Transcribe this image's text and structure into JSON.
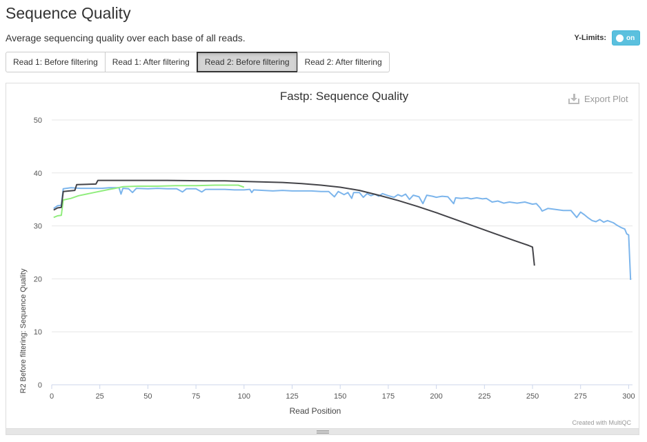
{
  "page": {
    "title": "Sequence Quality",
    "subtitle": "Average sequencing quality over each base of all reads."
  },
  "ylimits": {
    "label": "Y-Limits:",
    "toggle_text": "on"
  },
  "tabs": [
    {
      "label": "Read 1: Before filtering",
      "active": false
    },
    {
      "label": "Read 1: After filtering",
      "active": false
    },
    {
      "label": "Read 2: Before filtering",
      "active": true
    },
    {
      "label": "Read 2: After filtering",
      "active": false
    }
  ],
  "export_label": "Export Plot",
  "credit": "Created with MultiQC",
  "chart_data": {
    "type": "line",
    "title": "Fastp: Sequence Quality",
    "xlabel": "Read Position",
    "ylabel": "R2 Before filtering: Sequence Quality",
    "xlim": [
      0,
      302
    ],
    "ylim": [
      0,
      50
    ],
    "xticks": [
      0,
      25,
      50,
      75,
      100,
      125,
      150,
      175,
      200,
      225,
      250,
      275,
      300
    ],
    "yticks": [
      0,
      10,
      20,
      30,
      40,
      50
    ],
    "grid": true,
    "series": [
      {
        "color": "#7cb5ec",
        "points": [
          [
            1,
            33.3
          ],
          [
            3,
            33.8
          ],
          [
            5,
            33.9
          ],
          [
            6,
            37.0
          ],
          [
            10,
            37.2
          ],
          [
            15,
            37.1
          ],
          [
            20,
            37.1
          ],
          [
            26,
            37.1
          ],
          [
            30,
            37.2
          ],
          [
            35,
            37.2
          ],
          [
            36,
            36.0
          ],
          [
            37,
            37.1
          ],
          [
            40,
            37.0
          ],
          [
            42,
            36.3
          ],
          [
            44,
            37.1
          ],
          [
            50,
            37.0
          ],
          [
            55,
            37.1
          ],
          [
            60,
            37.0
          ],
          [
            65,
            37.0
          ],
          [
            68,
            36.4
          ],
          [
            70,
            37.0
          ],
          [
            75,
            37.0
          ],
          [
            78,
            36.4
          ],
          [
            80,
            36.9
          ],
          [
            85,
            36.9
          ],
          [
            90,
            36.9
          ],
          [
            95,
            36.8
          ],
          [
            100,
            36.8
          ],
          [
            103,
            36.9
          ],
          [
            104,
            36.3
          ],
          [
            105,
            36.8
          ],
          [
            110,
            36.7
          ],
          [
            115,
            36.6
          ],
          [
            120,
            36.7
          ],
          [
            125,
            36.6
          ],
          [
            130,
            36.6
          ],
          [
            135,
            36.6
          ],
          [
            140,
            36.5
          ],
          [
            144,
            36.5
          ],
          [
            147,
            35.5
          ],
          [
            149,
            36.5
          ],
          [
            152,
            35.9
          ],
          [
            154,
            36.3
          ],
          [
            156,
            35.2
          ],
          [
            157,
            36.3
          ],
          [
            160,
            36.3
          ],
          [
            162,
            35.4
          ],
          [
            164,
            36.1
          ],
          [
            166,
            35.7
          ],
          [
            168,
            36.0
          ],
          [
            170,
            35.6
          ],
          [
            172,
            36.1
          ],
          [
            175,
            35.7
          ],
          [
            178,
            35.4
          ],
          [
            180,
            35.9
          ],
          [
            182,
            35.6
          ],
          [
            184,
            36.0
          ],
          [
            186,
            35.0
          ],
          [
            188,
            35.8
          ],
          [
            191,
            35.5
          ],
          [
            193,
            34.2
          ],
          [
            195,
            35.8
          ],
          [
            198,
            35.6
          ],
          [
            200,
            35.4
          ],
          [
            203,
            35.6
          ],
          [
            206,
            35.5
          ],
          [
            209,
            34.2
          ],
          [
            210,
            35.3
          ],
          [
            213,
            35.2
          ],
          [
            216,
            35.3
          ],
          [
            218,
            35.1
          ],
          [
            221,
            35.3
          ],
          [
            224,
            35.1
          ],
          [
            226,
            35.2
          ],
          [
            229,
            34.5
          ],
          [
            232,
            34.7
          ],
          [
            235,
            34.3
          ],
          [
            238,
            34.5
          ],
          [
            242,
            34.3
          ],
          [
            246,
            34.5
          ],
          [
            250,
            34.1
          ],
          [
            252,
            34.2
          ],
          [
            254,
            33.4
          ],
          [
            255,
            32.8
          ],
          [
            258,
            33.3
          ],
          [
            262,
            33.1
          ],
          [
            266,
            32.9
          ],
          [
            270,
            32.9
          ],
          [
            273,
            31.6
          ],
          [
            275,
            32.6
          ],
          [
            277,
            32.1
          ],
          [
            279,
            31.5
          ],
          [
            281,
            31.0
          ],
          [
            283,
            30.8
          ],
          [
            285,
            31.2
          ],
          [
            287,
            30.7
          ],
          [
            289,
            31.0
          ],
          [
            292,
            30.6
          ],
          [
            294,
            30.1
          ],
          [
            296,
            29.7
          ],
          [
            298,
            29.4
          ],
          [
            299,
            28.5
          ],
          [
            300,
            28.3
          ],
          [
            301,
            19.8
          ]
        ]
      },
      {
        "color": "#90ed7d",
        "points": [
          [
            1,
            31.6
          ],
          [
            3,
            31.9
          ],
          [
            5,
            32.0
          ],
          [
            6,
            34.9
          ],
          [
            10,
            35.2
          ],
          [
            14,
            35.7
          ],
          [
            18,
            36.0
          ],
          [
            22,
            36.3
          ],
          [
            26,
            36.6
          ],
          [
            30,
            36.9
          ],
          [
            33,
            37.1
          ],
          [
            37,
            37.4
          ],
          [
            45,
            37.5
          ],
          [
            55,
            37.5
          ],
          [
            65,
            37.6
          ],
          [
            75,
            37.6
          ],
          [
            85,
            37.7
          ],
          [
            92,
            37.7
          ],
          [
            97,
            37.7
          ],
          [
            100,
            37.3
          ]
        ]
      },
      {
        "color": "#434348",
        "points": [
          [
            1,
            33.0
          ],
          [
            3,
            33.4
          ],
          [
            5,
            33.5
          ],
          [
            6,
            36.5
          ],
          [
            12,
            36.7
          ],
          [
            13,
            37.8
          ],
          [
            23,
            37.9
          ],
          [
            24,
            38.6
          ],
          [
            40,
            38.6
          ],
          [
            60,
            38.6
          ],
          [
            80,
            38.5
          ],
          [
            90,
            38.5
          ],
          [
            100,
            38.4
          ],
          [
            110,
            38.3
          ],
          [
            120,
            38.2
          ],
          [
            130,
            38.0
          ],
          [
            140,
            37.7
          ],
          [
            150,
            37.3
          ],
          [
            160,
            36.7
          ],
          [
            170,
            35.8
          ],
          [
            180,
            34.8
          ],
          [
            190,
            33.7
          ],
          [
            200,
            32.5
          ],
          [
            210,
            31.2
          ],
          [
            220,
            29.9
          ],
          [
            230,
            28.6
          ],
          [
            240,
            27.3
          ],
          [
            248,
            26.3
          ],
          [
            250,
            26.0
          ],
          [
            251,
            22.5
          ]
        ]
      }
    ]
  }
}
